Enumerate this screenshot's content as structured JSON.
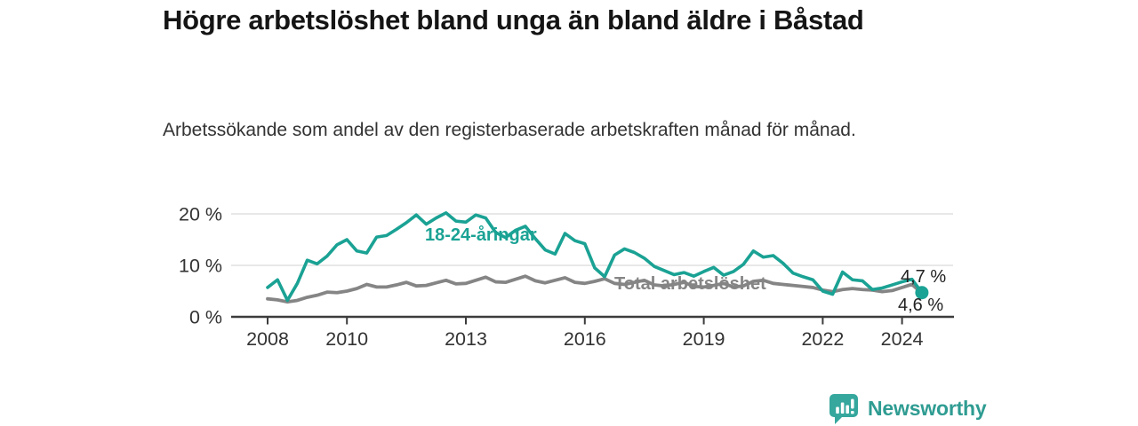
{
  "header": {
    "title": "Högre arbetslöshet bland unga än bland äldre i Båstad",
    "subtitle": "Arbetssökande som andel av den registerbaserade arbetskraften månad för månad."
  },
  "footer": {
    "brand": "Newsworthy",
    "brand_color": "#2F9C92",
    "icon_color": "#35A79D"
  },
  "chart_data": {
    "type": "line",
    "title": "Högre arbetslöshet bland unga än bland äldre i Båstad",
    "subtitle": "Arbetssökande som andel av den registerbaserade arbetskraften månad för månad.",
    "xlabel": "",
    "ylabel": "",
    "x_unit": "year (quarterly samples of monthly data)",
    "x_start": 2008.0,
    "x_step": 0.25,
    "x_end": 2024.5,
    "x_range": [
      2007.1,
      2025.3
    ],
    "y_range": [
      0,
      21
    ],
    "grid": "horizontal",
    "legend_position": "inline-labels",
    "grid_color": "#DBDBDB",
    "axis_color": "#3C3C3C",
    "axis_text_color": "#333333",
    "y_ticks": [
      {
        "value": 0,
        "label": "0 %"
      },
      {
        "value": 10,
        "label": "10 %"
      },
      {
        "value": 20,
        "label": "20 %"
      }
    ],
    "x_ticks": [
      {
        "value": 2008,
        "label": "2008"
      },
      {
        "value": 2010,
        "label": "2010"
      },
      {
        "value": 2013,
        "label": "2013"
      },
      {
        "value": 2016,
        "label": "2016"
      },
      {
        "value": 2019,
        "label": "2019"
      },
      {
        "value": 2022,
        "label": "2022"
      },
      {
        "value": 2024,
        "label": "2024"
      }
    ],
    "series": [
      {
        "name": "18-24-åringar",
        "color": "#1AA294",
        "line_width": 3.6,
        "end_label": "4,7 %",
        "end_value": 4.7,
        "end_dot": true,
        "values": [
          5.7,
          7.2,
          3.2,
          6.5,
          11.0,
          10.3,
          11.8,
          14.0,
          15.0,
          12.8,
          12.4,
          15.5,
          15.8,
          17.0,
          18.3,
          19.8,
          18.0,
          19.2,
          20.2,
          18.6,
          18.4,
          19.8,
          19.2,
          16.4,
          15.4,
          16.8,
          17.6,
          15.2,
          13.0,
          12.2,
          16.2,
          14.8,
          14.2,
          9.5,
          7.8,
          12.0,
          13.2,
          12.5,
          11.4,
          9.8,
          9.0,
          8.2,
          8.6,
          7.9,
          8.8,
          9.6,
          8.1,
          8.8,
          10.2,
          12.8,
          11.6,
          11.9,
          10.4,
          8.5,
          7.8,
          7.2,
          5.0,
          4.4,
          8.7,
          7.2,
          7.0,
          5.3,
          5.6,
          6.2,
          6.8,
          7.3,
          4.7
        ]
      },
      {
        "name": "Total arbetslöshet",
        "color": "#858585",
        "line_width": 3.8,
        "end_label": "4,6 %",
        "end_value": 4.6,
        "end_dot": false,
        "values": [
          3.5,
          3.3,
          2.9,
          3.2,
          3.8,
          4.2,
          4.8,
          4.7,
          5.0,
          5.5,
          6.3,
          5.8,
          5.8,
          6.2,
          6.7,
          6.0,
          6.1,
          6.6,
          7.1,
          6.4,
          6.5,
          7.1,
          7.7,
          6.8,
          6.7,
          7.3,
          7.9,
          7.0,
          6.6,
          7.1,
          7.6,
          6.7,
          6.5,
          6.9,
          7.4,
          6.5,
          6.3,
          6.7,
          7.1,
          6.2,
          6.0,
          6.3,
          6.7,
          5.9,
          5.8,
          6.1,
          6.5,
          5.8,
          6.0,
          6.9,
          7.1,
          6.5,
          6.3,
          6.1,
          5.9,
          5.7,
          5.2,
          4.9,
          5.3,
          5.5,
          5.3,
          5.2,
          4.9,
          5.1,
          5.7,
          6.3,
          4.6
        ]
      }
    ]
  }
}
